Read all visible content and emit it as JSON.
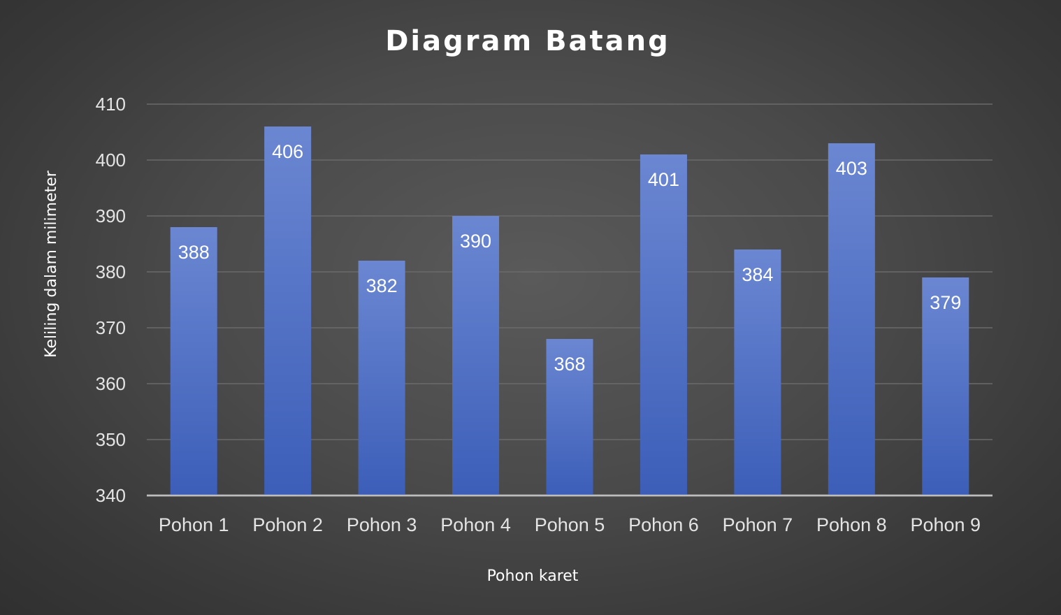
{
  "colors": {
    "bar_top": "#6b87d2",
    "bar_bottom": "#3c5eb8",
    "background": "#4a4a4a",
    "gridline": "#6a6a6a",
    "text": "#ffffff"
  },
  "chart_data": {
    "type": "bar",
    "title": "Diagram Batang",
    "xlabel": "Pohon karet",
    "ylabel": "Keliling dalam milimeter",
    "categories": [
      "Pohon 1",
      "Pohon 2",
      "Pohon 3",
      "Pohon 4",
      "Pohon 5",
      "Pohon 6",
      "Pohon 7",
      "Pohon 8",
      "Pohon 9"
    ],
    "values": [
      388,
      406,
      382,
      390,
      368,
      401,
      384,
      403,
      379
    ],
    "ylim": [
      340,
      410
    ],
    "yticks": [
      340,
      350,
      360,
      370,
      380,
      390,
      400,
      410
    ],
    "grid": true,
    "data_labels": true,
    "legend": "none"
  }
}
